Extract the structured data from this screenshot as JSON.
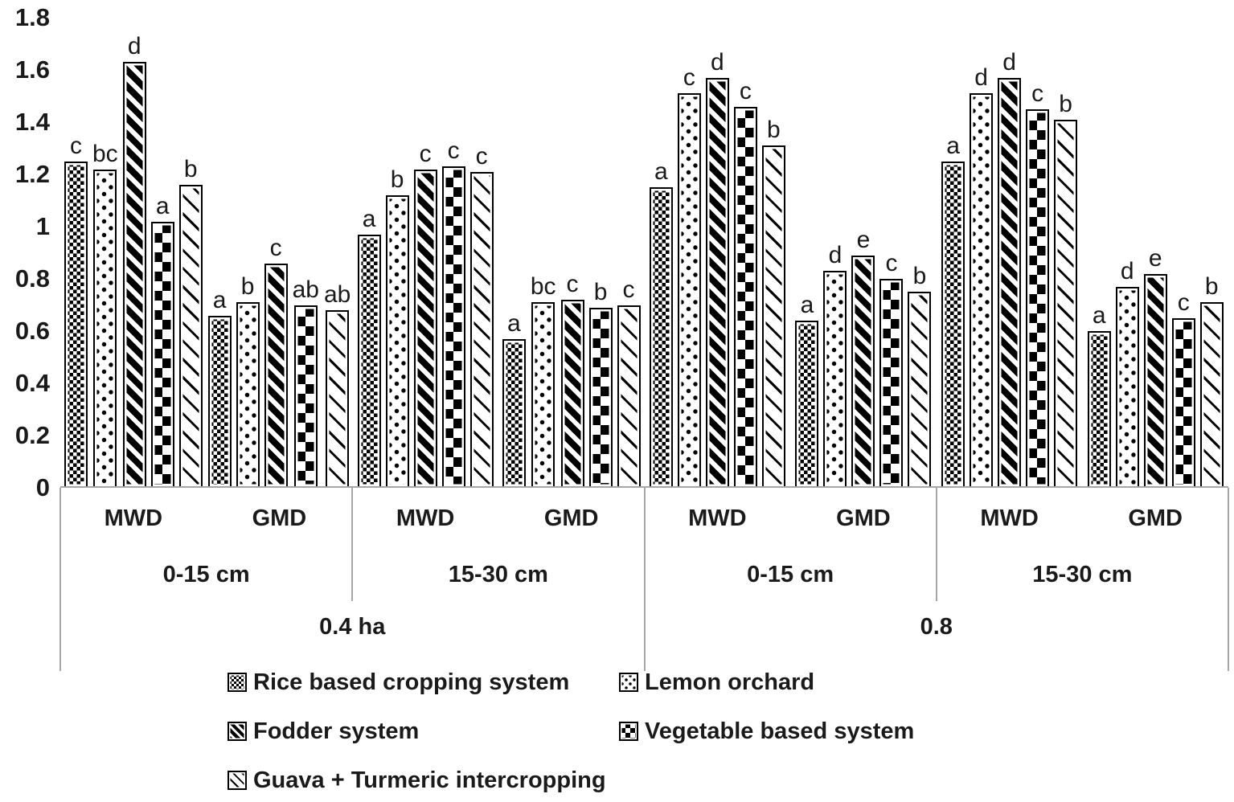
{
  "chart_data": {
    "type": "bar",
    "title": "",
    "xlabel": "",
    "ylabel": "",
    "ylim": [
      0,
      1.8
    ],
    "grid": false,
    "legend_position": "bottom",
    "ytick_labels": [
      "1.8",
      "1.6",
      "1.4",
      "1.2",
      "1",
      "0.8",
      "0.6",
      "0.4",
      "0.2",
      "0"
    ],
    "yticks": [
      1.8,
      1.6,
      1.4,
      1.2,
      1.0,
      0.8,
      0.6,
      0.4,
      0.2,
      0
    ],
    "series": [
      {
        "name": "Rice based cropping system",
        "pattern": "rice"
      },
      {
        "name": "Lemon orchard",
        "pattern": "lemon"
      },
      {
        "name": "Fodder system",
        "pattern": "fodder"
      },
      {
        "name": "Vegetable based system",
        "pattern": "vegetable"
      },
      {
        "name": "Guava + Turmeric intercropping",
        "pattern": "guava"
      }
    ],
    "groups": [
      {
        "area": "0.4 ha",
        "depth": "0-15 cm",
        "measure": "MWD",
        "values": [
          1.25,
          1.22,
          1.63,
          1.02,
          1.16
        ],
        "letters": [
          "c",
          "bc",
          "d",
          "a",
          "b"
        ]
      },
      {
        "area": "0.4 ha",
        "depth": "0-15 cm",
        "measure": "GMD",
        "values": [
          0.66,
          0.71,
          0.86,
          0.7,
          0.68
        ],
        "letters": [
          "a",
          "b",
          "c",
          "ab",
          "ab"
        ]
      },
      {
        "area": "0.4 ha",
        "depth": "15-30 cm",
        "measure": "MWD",
        "values": [
          0.97,
          1.12,
          1.22,
          1.23,
          1.21
        ],
        "letters": [
          "a",
          "b",
          "c",
          "c",
          "c"
        ]
      },
      {
        "area": "0.4 ha",
        "depth": "15-30 cm",
        "measure": "GMD",
        "values": [
          0.57,
          0.71,
          0.72,
          0.69,
          0.7
        ],
        "letters": [
          "a",
          "bc",
          "c",
          "b",
          "c"
        ]
      },
      {
        "area": "0.8",
        "depth": "0-15 cm",
        "measure": "MWD",
        "values": [
          1.15,
          1.51,
          1.57,
          1.46,
          1.31
        ],
        "letters": [
          "a",
          "c",
          "d",
          "c",
          "b"
        ]
      },
      {
        "area": "0.8",
        "depth": "0-15 cm",
        "measure": "GMD",
        "values": [
          0.64,
          0.83,
          0.89,
          0.8,
          0.75
        ],
        "letters": [
          "a",
          "d",
          "e",
          "c",
          "b"
        ]
      },
      {
        "area": "0.8",
        "depth": "15-30 cm",
        "measure": "MWD",
        "values": [
          1.25,
          1.51,
          1.57,
          1.45,
          1.41
        ],
        "letters": [
          "a",
          "d",
          "d",
          "c",
          "b"
        ]
      },
      {
        "area": "0.8",
        "depth": "15-30 cm",
        "measure": "GMD",
        "values": [
          0.6,
          0.77,
          0.82,
          0.65,
          0.71
        ],
        "letters": [
          "a",
          "d",
          "e",
          "c",
          "b"
        ]
      }
    ],
    "axis_level1": [
      "MWD",
      "GMD",
      "MWD",
      "GMD",
      "MWD",
      "GMD",
      "MWD",
      "GMD"
    ],
    "axis_level2": [
      "0-15 cm",
      "15-30 cm",
      "0-15 cm",
      "15-30 cm"
    ],
    "axis_level3": [
      "0.4 ha",
      "0.8"
    ]
  },
  "colors": {
    "bar_fill": "#000000",
    "bar_background": "#ffffff",
    "text": "#1a1a1a",
    "axis_line": "#a6a6a6"
  }
}
